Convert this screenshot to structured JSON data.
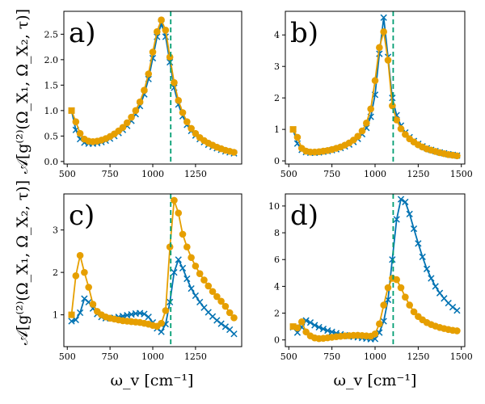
{
  "figure": {
    "ylabel": "𝒜[g⁽²⁾(Ω_X₁, Ω_X₂, τ)]",
    "xlabel": "ω_v [cm⁻¹]"
  },
  "colors": {
    "blue": "#0072b2",
    "orange": "#e69f00",
    "green": "#009e73"
  },
  "chart_data": [
    {
      "type": "line",
      "panel_label": "a)",
      "xlim": [
        480,
        1520
      ],
      "ylim": [
        -0.05,
        2.95
      ],
      "xticks": [
        500,
        750,
        1000,
        1250
      ],
      "yticks": [
        0.0,
        0.5,
        1.0,
        1.5,
        2.0,
        2.5
      ],
      "ytick_labels": [
        "0.0",
        "0.5",
        "1.0",
        "1.5",
        "2.0",
        "2.5"
      ],
      "vline": 1105,
      "series": [
        {
          "name": "crosses",
          "color": "blue",
          "marker": "x",
          "x": [
            525,
            550,
            575,
            600,
            625,
            650,
            675,
            700,
            725,
            750,
            775,
            800,
            825,
            850,
            875,
            900,
            925,
            950,
            975,
            1000,
            1025,
            1050,
            1075,
            1100,
            1125,
            1150,
            1175,
            1200,
            1225,
            1250,
            1275,
            1300,
            1325,
            1350,
            1375,
            1400,
            1425,
            1450,
            1475
          ],
          "y": [
            1.0,
            0.62,
            0.44,
            0.37,
            0.35,
            0.35,
            0.36,
            0.38,
            0.41,
            0.45,
            0.5,
            0.56,
            0.62,
            0.7,
            0.8,
            0.93,
            1.09,
            1.32,
            1.62,
            2.03,
            2.45,
            2.7,
            2.45,
            1.95,
            1.45,
            1.12,
            0.89,
            0.72,
            0.6,
            0.51,
            0.44,
            0.38,
            0.33,
            0.29,
            0.26,
            0.23,
            0.2,
            0.18,
            0.16
          ]
        },
        {
          "name": "circles",
          "color": "orange",
          "marker": "o",
          "x": [
            525,
            550,
            575,
            600,
            625,
            650,
            675,
            700,
            725,
            750,
            775,
            800,
            825,
            850,
            875,
            900,
            925,
            950,
            975,
            1000,
            1025,
            1050,
            1075,
            1100,
            1125,
            1150,
            1175,
            1200,
            1225,
            1250,
            1275,
            1300,
            1325,
            1350,
            1375,
            1400,
            1425,
            1450,
            1475
          ],
          "y": [
            1.0,
            0.78,
            0.55,
            0.44,
            0.4,
            0.39,
            0.4,
            0.42,
            0.45,
            0.49,
            0.54,
            0.6,
            0.67,
            0.76,
            0.87,
            1.0,
            1.17,
            1.4,
            1.72,
            2.15,
            2.55,
            2.78,
            2.58,
            2.05,
            1.55,
            1.2,
            0.96,
            0.78,
            0.65,
            0.55,
            0.47,
            0.41,
            0.36,
            0.32,
            0.28,
            0.25,
            0.22,
            0.2,
            0.18
          ]
        }
      ]
    },
    {
      "type": "line",
      "panel_label": "b)",
      "xlim": [
        480,
        1520
      ],
      "ylim": [
        -0.1,
        4.75
      ],
      "xticks": [
        500,
        750,
        1000,
        1250,
        1500
      ],
      "yticks": [
        0,
        1,
        2,
        3,
        4
      ],
      "ytick_labels": [
        "0",
        "1",
        "2",
        "3",
        "4"
      ],
      "vline": 1105,
      "series": [
        {
          "name": "crosses",
          "color": "blue",
          "marker": "x",
          "x": [
            525,
            550,
            575,
            600,
            625,
            650,
            675,
            700,
            725,
            750,
            775,
            800,
            825,
            850,
            875,
            900,
            925,
            950,
            975,
            1000,
            1025,
            1050,
            1075,
            1100,
            1125,
            1150,
            1175,
            1200,
            1225,
            1250,
            1275,
            1300,
            1325,
            1350,
            1375,
            1400,
            1425,
            1450,
            1475
          ],
          "y": [
            1.0,
            0.55,
            0.35,
            0.28,
            0.26,
            0.26,
            0.27,
            0.29,
            0.31,
            0.34,
            0.37,
            0.41,
            0.46,
            0.52,
            0.6,
            0.7,
            0.85,
            1.05,
            1.4,
            2.1,
            3.4,
            4.55,
            3.3,
            2.0,
            1.45,
            1.12,
            0.9,
            0.75,
            0.63,
            0.54,
            0.46,
            0.4,
            0.35,
            0.31,
            0.27,
            0.24,
            0.21,
            0.19,
            0.17
          ]
        },
        {
          "name": "circles",
          "color": "orange",
          "marker": "o",
          "x": [
            525,
            550,
            575,
            600,
            625,
            650,
            675,
            700,
            725,
            750,
            775,
            800,
            825,
            850,
            875,
            900,
            925,
            950,
            975,
            1000,
            1025,
            1050,
            1075,
            1100,
            1125,
            1150,
            1175,
            1200,
            1225,
            1250,
            1275,
            1300,
            1325,
            1350,
            1375,
            1400,
            1425,
            1450,
            1475
          ],
          "y": [
            1.0,
            0.75,
            0.4,
            0.31,
            0.28,
            0.28,
            0.29,
            0.31,
            0.33,
            0.36,
            0.4,
            0.44,
            0.5,
            0.57,
            0.66,
            0.78,
            0.95,
            1.2,
            1.65,
            2.55,
            3.6,
            4.1,
            3.2,
            1.75,
            1.3,
            1.02,
            0.84,
            0.7,
            0.6,
            0.51,
            0.44,
            0.38,
            0.34,
            0.3,
            0.26,
            0.23,
            0.2,
            0.18,
            0.16
          ]
        }
      ]
    },
    {
      "type": "line",
      "panel_label": "c)",
      "xlim": [
        480,
        1520
      ],
      "ylim": [
        0.25,
        3.85
      ],
      "xticks": [
        500,
        750,
        1000,
        1250
      ],
      "yticks": [
        1,
        2,
        3
      ],
      "ytick_labels": [
        "1",
        "2",
        "3"
      ],
      "vline": 1105,
      "series": [
        {
          "name": "crosses",
          "color": "blue",
          "marker": "x",
          "x": [
            525,
            550,
            575,
            600,
            625,
            650,
            675,
            700,
            725,
            750,
            775,
            800,
            825,
            850,
            875,
            900,
            925,
            950,
            975,
            1000,
            1025,
            1050,
            1075,
            1100,
            1125,
            1150,
            1175,
            1200,
            1225,
            1250,
            1275,
            1300,
            1325,
            1350,
            1375,
            1400,
            1425,
            1450,
            1475
          ],
          "y": [
            0.85,
            0.88,
            1.05,
            1.38,
            1.3,
            1.15,
            1.02,
            0.95,
            0.92,
            0.92,
            0.93,
            0.95,
            0.97,
            0.99,
            1.01,
            1.03,
            1.04,
            1.02,
            0.95,
            0.82,
            0.68,
            0.6,
            0.78,
            1.3,
            2.0,
            2.3,
            2.1,
            1.85,
            1.62,
            1.45,
            1.3,
            1.17,
            1.06,
            0.96,
            0.87,
            0.79,
            0.72,
            0.65,
            0.55
          ]
        },
        {
          "name": "circles",
          "color": "orange",
          "marker": "o",
          "x": [
            525,
            550,
            575,
            600,
            625,
            650,
            675,
            700,
            725,
            750,
            775,
            800,
            825,
            850,
            875,
            900,
            925,
            950,
            975,
            1000,
            1025,
            1050,
            1075,
            1100,
            1125,
            1150,
            1175,
            1200,
            1225,
            1250,
            1275,
            1300,
            1325,
            1350,
            1375,
            1400,
            1425,
            1450,
            1475
          ],
          "y": [
            1.0,
            1.92,
            2.4,
            2.0,
            1.65,
            1.25,
            1.08,
            1.0,
            0.95,
            0.92,
            0.9,
            0.88,
            0.86,
            0.85,
            0.84,
            0.83,
            0.82,
            0.8,
            0.78,
            0.75,
            0.73,
            0.8,
            1.1,
            2.6,
            3.7,
            3.4,
            2.9,
            2.6,
            2.35,
            2.15,
            1.97,
            1.82,
            1.68,
            1.55,
            1.43,
            1.32,
            1.2,
            1.05,
            0.93
          ]
        }
      ]
    },
    {
      "type": "line",
      "panel_label": "d)",
      "xlim": [
        480,
        1520
      ],
      "ylim": [
        -0.5,
        10.9
      ],
      "xticks": [
        500,
        750,
        1000,
        1250,
        1500
      ],
      "yticks": [
        0,
        2,
        4,
        6,
        8,
        10
      ],
      "ytick_labels": [
        "0",
        "2",
        "4",
        "6",
        "8",
        "10"
      ],
      "vline": 1105,
      "series": [
        {
          "name": "crosses",
          "color": "blue",
          "marker": "x",
          "x": [
            525,
            550,
            575,
            600,
            625,
            650,
            675,
            700,
            725,
            750,
            775,
            800,
            825,
            850,
            875,
            900,
            925,
            950,
            975,
            1000,
            1025,
            1050,
            1075,
            1100,
            1125,
            1150,
            1175,
            1200,
            1225,
            1250,
            1275,
            1300,
            1325,
            1350,
            1375,
            1400,
            1425,
            1450,
            1475
          ],
          "y": [
            0.95,
            0.55,
            0.95,
            1.45,
            1.3,
            1.1,
            0.95,
            0.82,
            0.7,
            0.6,
            0.5,
            0.42,
            0.35,
            0.29,
            0.24,
            0.2,
            0.15,
            0.1,
            0.06,
            0.08,
            0.55,
            1.4,
            3.0,
            6.0,
            9.0,
            10.5,
            10.3,
            9.4,
            8.3,
            7.2,
            6.2,
            5.3,
            4.6,
            4.0,
            3.5,
            3.1,
            2.75,
            2.45,
            2.2
          ]
        },
        {
          "name": "circles",
          "color": "orange",
          "marker": "o",
          "x": [
            525,
            550,
            575,
            600,
            625,
            650,
            675,
            700,
            725,
            750,
            775,
            800,
            825,
            850,
            875,
            900,
            925,
            950,
            975,
            1000,
            1025,
            1050,
            1075,
            1100,
            1125,
            1150,
            1175,
            1200,
            1225,
            1250,
            1275,
            1300,
            1325,
            1350,
            1375,
            1400,
            1425,
            1450,
            1475
          ],
          "y": [
            1.0,
            0.9,
            1.35,
            0.6,
            0.3,
            0.15,
            0.1,
            0.12,
            0.16,
            0.2,
            0.24,
            0.27,
            0.3,
            0.32,
            0.34,
            0.35,
            0.33,
            0.3,
            0.28,
            0.45,
            1.2,
            2.6,
            3.9,
            4.6,
            4.5,
            3.9,
            3.2,
            2.6,
            2.1,
            1.75,
            1.5,
            1.3,
            1.15,
            1.03,
            0.93,
            0.85,
            0.78,
            0.72,
            0.68
          ]
        }
      ]
    }
  ]
}
